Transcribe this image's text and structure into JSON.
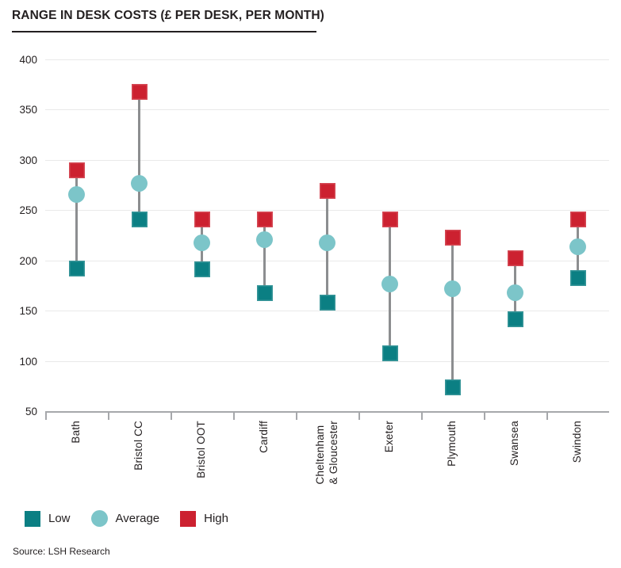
{
  "title": "RANGE IN DESK COSTS (£ PER DESK, PER MONTH)",
  "source": "Source: LSH Research",
  "colors": {
    "low": "#0b7f83",
    "average": "#7cc5c9",
    "high": "#cc2130",
    "grid": "#e9e9e9",
    "axis": "#a6a8ab",
    "connector": "#8c8e90",
    "text": "#231f20"
  },
  "legend": {
    "items": [
      {
        "label": "Low",
        "shape": "square",
        "color": "#0b7f83"
      },
      {
        "label": "Average",
        "shape": "circle",
        "color": "#7cc5c9"
      },
      {
        "label": "High",
        "shape": "square",
        "color": "#cc2130"
      }
    ]
  },
  "chart_data": {
    "type": "scatter",
    "subtype": "range-dumbbell",
    "title": "RANGE IN DESK COSTS (£ PER DESK, PER MONTH)",
    "xlabel": "",
    "ylabel": "",
    "categories": [
      "Bath",
      "Bristol CC",
      "Bristol OOT",
      "Cardiff",
      "Cheltenham\n& Gloucester",
      "Exeter",
      "Plymouth",
      "Swansea",
      "Swindon"
    ],
    "series": [
      {
        "name": "Low",
        "marker": "square",
        "color": "#0b7f83",
        "values": [
          192,
          241,
          191,
          168,
          158,
          108,
          74,
          142,
          183
        ]
      },
      {
        "name": "Average",
        "marker": "circle",
        "color": "#7cc5c9",
        "values": [
          266,
          277,
          218,
          221,
          218,
          177,
          172,
          168,
          214
        ]
      },
      {
        "name": "High",
        "marker": "square",
        "color": "#cc2130",
        "values": [
          290,
          368,
          241,
          241,
          269,
          241,
          223,
          202,
          241
        ]
      }
    ],
    "ylim": [
      50,
      400
    ],
    "y_ticks": [
      400,
      350,
      300,
      250,
      200,
      150,
      100,
      50
    ],
    "grid": "horizontal",
    "legend_position": "bottom"
  }
}
